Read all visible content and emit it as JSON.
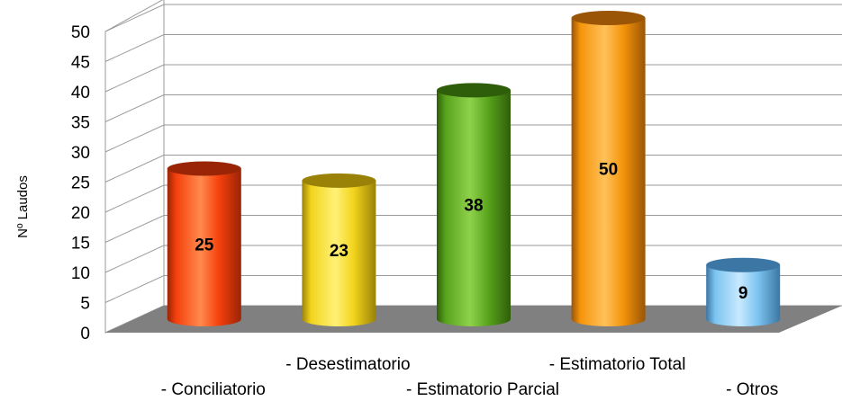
{
  "chart_data": {
    "type": "bar",
    "title": "",
    "ylabel": "Nº Laudos",
    "xlabel": "",
    "ylim": [
      0,
      50
    ],
    "yticks": [
      0,
      5,
      10,
      15,
      20,
      25,
      30,
      35,
      40,
      45,
      50
    ],
    "grid": true,
    "style": "3d-cylinder",
    "categories": [
      "- Conciliatorio",
      "- Desestimatorio",
      "- Estimatorio Parcial",
      "- Estimatorio Total",
      "- Otros"
    ],
    "values": [
      25,
      23,
      38,
      50,
      9
    ],
    "data_labels": [
      "25",
      "23",
      "38",
      "50",
      "9"
    ],
    "colors": [
      "#f5400c",
      "#f2d41c",
      "#58a31c",
      "#f5940a",
      "#7cc4f0"
    ],
    "dark_colors": [
      "#9a2406",
      "#9a8208",
      "#2f5e0a",
      "#9a5506",
      "#3b76a5"
    ],
    "light_colors": [
      "#ff8a4e",
      "#fff176",
      "#8fd24c",
      "#ffc15a",
      "#c8e9ff"
    ],
    "floor_color": "#808080",
    "grid_color": "#9a9a9a"
  }
}
